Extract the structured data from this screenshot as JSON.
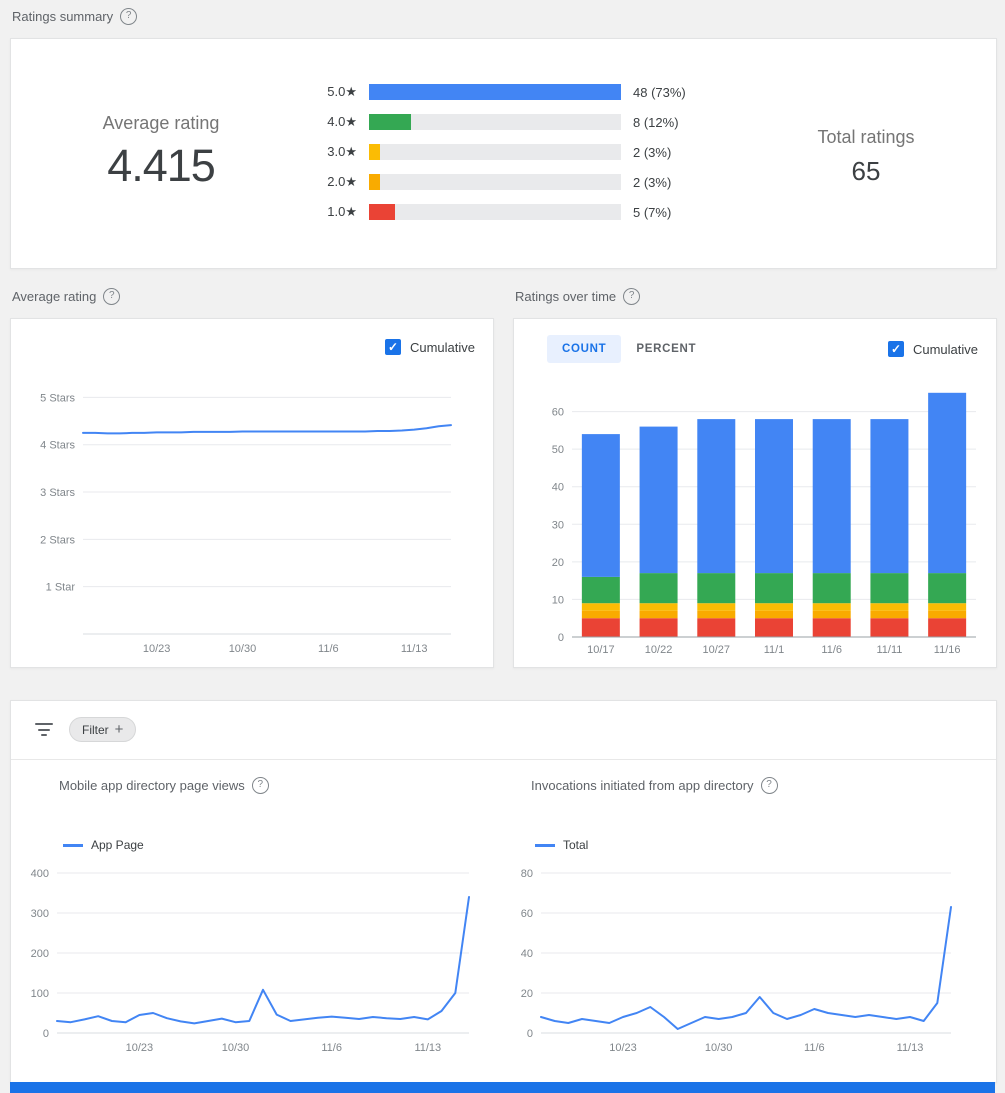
{
  "colors": {
    "accent": "#1a73e8",
    "tab_active_bg": "#e8f0fe",
    "line": "#4285f4",
    "footer_bar": "#1a73e8",
    "page_bg": "#f1f1f1"
  },
  "icons": {
    "help": "?",
    "check": "✓",
    "plus": "+",
    "star": "★"
  },
  "headers": {
    "ratings_summary": "Ratings summary",
    "average_rating": "Average rating",
    "ratings_over_time": "Ratings over time"
  },
  "ratings_summary": {
    "average_label": "Average rating",
    "average_value": "4.415",
    "total_label": "Total ratings",
    "total_value": "65",
    "bars": [
      {
        "label": "5.0",
        "display": "48 (73%)",
        "count": 48,
        "percent": 73,
        "color": "#4285f4",
        "width_pct": 100
      },
      {
        "label": "4.0",
        "display": "8 (12%)",
        "count": 8,
        "percent": 12,
        "color": "#34a853",
        "width_pct": 16.7
      },
      {
        "label": "3.0",
        "display": "2 (3%)",
        "count": 2,
        "percent": 3,
        "color": "#fbbc04",
        "width_pct": 4.2
      },
      {
        "label": "2.0",
        "display": "2 (3%)",
        "count": 2,
        "percent": 3,
        "color": "#f9ab00",
        "width_pct": 4.2
      },
      {
        "label": "1.0",
        "display": "5 (7%)",
        "count": 5,
        "percent": 7,
        "color": "#ea4335",
        "width_pct": 10.4
      }
    ]
  },
  "average_rating_card": {
    "cumulative_label": "Cumulative",
    "cumulative_checked": true
  },
  "ratings_over_time_card": {
    "tabs": [
      "COUNT",
      "PERCENT"
    ],
    "active_tab": "COUNT",
    "cumulative_label": "Cumulative",
    "cumulative_checked": true
  },
  "filter": {
    "label": "Filter"
  },
  "page_views_card": {
    "title": "Mobile app directory page views",
    "legend": "App Page"
  },
  "invocations_card": {
    "title": "Invocations initiated from app directory",
    "legend": "Total"
  },
  "chart_data": [
    {
      "id": "average_rating_over_time",
      "type": "line",
      "title": "Average rating",
      "cumulative": true,
      "x_start": "10/17",
      "x_labels": [
        {
          "label": "10/23",
          "index": 6
        },
        {
          "label": "10/30",
          "index": 13
        },
        {
          "label": "11/6",
          "index": 20
        },
        {
          "label": "11/13",
          "index": 27
        }
      ],
      "y_gridlines": [
        {
          "value": 5,
          "label": "5 Stars"
        },
        {
          "value": 4,
          "label": "4 Stars"
        },
        {
          "value": 3,
          "label": "3 Stars"
        },
        {
          "value": 2,
          "label": "2 Stars"
        },
        {
          "value": 1,
          "label": "1 Star"
        }
      ],
      "ylim": [
        0,
        5.6
      ],
      "values": [
        4.25,
        4.25,
        4.24,
        4.24,
        4.25,
        4.25,
        4.26,
        4.26,
        4.26,
        4.27,
        4.27,
        4.27,
        4.27,
        4.28,
        4.28,
        4.28,
        4.28,
        4.28,
        4.28,
        4.28,
        4.28,
        4.28,
        4.28,
        4.28,
        4.29,
        4.29,
        4.3,
        4.32,
        4.35,
        4.39,
        4.415
      ]
    },
    {
      "id": "ratings_over_time",
      "type": "bar",
      "stacked": true,
      "title": "Ratings over time",
      "active_tab": "COUNT",
      "categories": [
        "10/17",
        "10/22",
        "10/27",
        "11/1",
        "11/6",
        "11/11",
        "11/16"
      ],
      "series": [
        {
          "name": "1 star",
          "color": "#ea4335",
          "values": [
            5,
            5,
            5,
            5,
            5,
            5,
            5
          ]
        },
        {
          "name": "2 stars",
          "color": "#f9ab00",
          "values": [
            2,
            2,
            2,
            2,
            2,
            2,
            2
          ]
        },
        {
          "name": "3 stars",
          "color": "#fbbc04",
          "values": [
            2,
            2,
            2,
            2,
            2,
            2,
            2
          ]
        },
        {
          "name": "4 stars",
          "color": "#34a853",
          "values": [
            7,
            8,
            8,
            8,
            8,
            8,
            8
          ]
        },
        {
          "name": "5 stars",
          "color": "#4285f4",
          "values": [
            38,
            39,
            41,
            41,
            41,
            41,
            48
          ]
        }
      ],
      "totals": [
        54,
        56,
        58,
        58,
        58,
        58,
        65
      ],
      "y_ticks": [
        0,
        10,
        20,
        30,
        40,
        50,
        60
      ],
      "ylim": [
        0,
        70
      ]
    },
    {
      "id": "app_page_views",
      "type": "line",
      "title": "Mobile app directory page views",
      "legend": "App Page",
      "x_start": "10/17",
      "x_labels": [
        {
          "label": "10/23",
          "index": 6
        },
        {
          "label": "10/30",
          "index": 13
        },
        {
          "label": "11/6",
          "index": 20
        },
        {
          "label": "11/13",
          "index": 27
        }
      ],
      "y_ticks": [
        0,
        100,
        200,
        300,
        400
      ],
      "ylim": [
        0,
        400
      ],
      "values": [
        30,
        27,
        34,
        42,
        30,
        27,
        45,
        50,
        37,
        29,
        24,
        30,
        36,
        27,
        30,
        108,
        46,
        30,
        34,
        38,
        41,
        38,
        35,
        40,
        37,
        35,
        40,
        34,
        55,
        100,
        340
      ]
    },
    {
      "id": "invocations",
      "type": "line",
      "title": "Invocations initiated from app directory",
      "legend": "Total",
      "x_start": "10/17",
      "x_labels": [
        {
          "label": "10/23",
          "index": 6
        },
        {
          "label": "10/30",
          "index": 13
        },
        {
          "label": "11/6",
          "index": 20
        },
        {
          "label": "11/13",
          "index": 27
        }
      ],
      "y_ticks": [
        0,
        20,
        40,
        60,
        80
      ],
      "ylim": [
        0,
        80
      ],
      "values": [
        8,
        6,
        5,
        7,
        6,
        5,
        8,
        10,
        13,
        8,
        2,
        5,
        8,
        7,
        8,
        10,
        18,
        10,
        7,
        9,
        12,
        10,
        9,
        8,
        9,
        8,
        7,
        8,
        6,
        15,
        63
      ]
    }
  ]
}
